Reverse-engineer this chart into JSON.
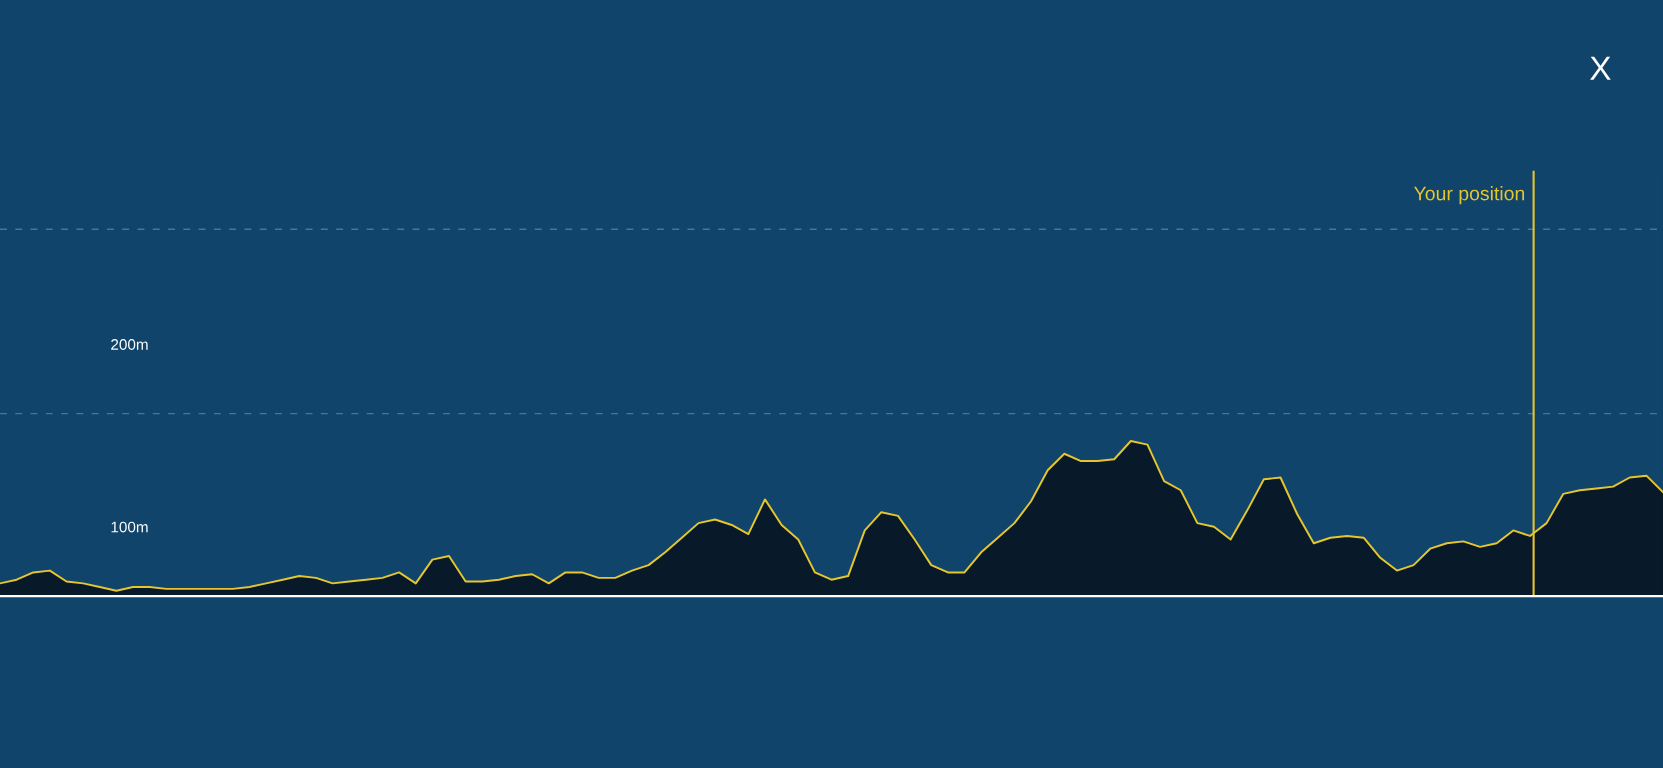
{
  "chart_data": {
    "type": "area",
    "categories": [
      null,
      null,
      null,
      null,
      null,
      null,
      null,
      null,
      null,
      null,
      null,
      null,
      null,
      null,
      null,
      null,
      null,
      null,
      null,
      null,
      null,
      null,
      null,
      null,
      null,
      null,
      null,
      null,
      null,
      null,
      null,
      null,
      null,
      null,
      null,
      null,
      null,
      null,
      null,
      null,
      null,
      null,
      null,
      null,
      null,
      null,
      null,
      null,
      null,
      null,
      null,
      null,
      null,
      null,
      null,
      null,
      null,
      null,
      null,
      null,
      null,
      null,
      null,
      null,
      null,
      null,
      null,
      null,
      null,
      null,
      null,
      null,
      null,
      null,
      null,
      null,
      null,
      null,
      null,
      null,
      null,
      null,
      null,
      null,
      null,
      null,
      null,
      null,
      null,
      null,
      null,
      null,
      null,
      null,
      null,
      null,
      null,
      null,
      null,
      null,
      null
    ],
    "series": [
      {
        "color": "#e6c62e",
        "values": [
          69,
          71,
          75,
          76,
          70,
          69,
          67,
          65,
          67,
          67,
          66,
          66,
          66,
          66,
          66,
          67,
          69,
          71,
          73,
          72,
          69,
          70,
          71,
          72,
          75,
          69,
          82,
          84,
          70,
          70,
          71,
          73,
          74,
          69,
          75,
          75,
          72,
          72,
          76,
          79,
          86,
          94,
          102,
          104,
          101,
          96,
          115,
          101,
          93,
          75,
          71,
          73,
          98,
          108,
          106,
          93,
          79,
          75,
          75,
          86,
          94,
          102,
          114,
          131,
          140,
          136,
          136,
          137,
          147,
          145,
          125,
          120,
          102,
          100,
          93,
          109,
          126,
          127,
          107,
          91,
          94,
          95,
          94,
          83,
          76,
          79,
          88,
          91,
          92,
          89,
          91,
          98,
          95,
          102,
          118,
          120,
          121,
          122,
          127,
          128,
          119
        ]
      }
    ],
    "ylim": [
      62,
      295
    ],
    "yticks": [
      {
        "value": 100,
        "label": "100m"
      },
      {
        "value": 200,
        "label": "200m"
      }
    ],
    "tick_labels": "y",
    "ref_lines": [
      {
        "axis": "y",
        "value": 162,
        "label": null,
        "color": "#4a7596",
        "line_style": "dashed"
      },
      {
        "axis": "y",
        "value": 263,
        "label": null,
        "color": "#4a7596",
        "line_style": "dashed"
      }
    ],
    "annotations": [
      "Your position",
      "X"
    ]
  }
}
